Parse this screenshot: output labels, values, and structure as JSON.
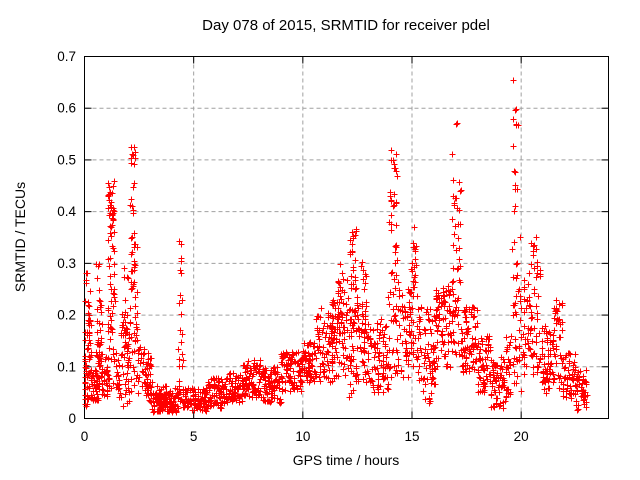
{
  "chart_data": {
    "type": "scatter",
    "title": "Day 078 of 2015, SRMTID for receiver pdel",
    "xlabel": "GPS time / hours",
    "ylabel": "SRMTID / TECUs",
    "xlim": [
      0,
      24
    ],
    "ylim": [
      0,
      0.7
    ],
    "x_ticks": [
      {
        "v": 0,
        "label": "0"
      },
      {
        "v": 5,
        "label": "5"
      },
      {
        "v": 10,
        "label": "10"
      },
      {
        "v": 15,
        "label": "15"
      },
      {
        "v": 20,
        "label": "20"
      }
    ],
    "y_ticks": [
      {
        "v": 0,
        "label": "0"
      },
      {
        "v": 0.1,
        "label": "0.1"
      },
      {
        "v": 0.2,
        "label": "0.2"
      },
      {
        "v": 0.3,
        "label": "0.3"
      },
      {
        "v": 0.4,
        "label": "0.4"
      },
      {
        "v": 0.5,
        "label": "0.5"
      },
      {
        "v": 0.6,
        "label": "0.6"
      },
      {
        "v": 0.7,
        "label": "0.7"
      }
    ],
    "grid": {
      "on": true,
      "color": "#a0a0a0",
      "dash": "4 3"
    },
    "border_color": "#000000",
    "marker": "plus",
    "marker_color": "#ff0000",
    "marker_size": 7,
    "seed": 20150378,
    "series": [
      {
        "name": "SRMTID",
        "bin_format": "[t_start_hours, t_end_hours, point_count, y_min_TECUs, y_max_TECUs]",
        "bins": [
          [
            0.0,
            0.3,
            55,
            0.02,
            0.19
          ],
          [
            0.02,
            0.28,
            12,
            0.19,
            0.33
          ],
          [
            0.3,
            0.55,
            30,
            0.03,
            0.1
          ],
          [
            0.5,
            0.8,
            45,
            0.03,
            0.22
          ],
          [
            0.52,
            0.75,
            8,
            0.22,
            0.3
          ],
          [
            0.8,
            1.05,
            25,
            0.04,
            0.12
          ],
          [
            1.0,
            1.45,
            28,
            0.05,
            0.2
          ],
          [
            1.05,
            1.4,
            22,
            0.2,
            0.35
          ],
          [
            1.05,
            1.35,
            32,
            0.35,
            0.46
          ],
          [
            1.45,
            1.65,
            15,
            0.04,
            0.12
          ],
          [
            1.65,
            2.05,
            50,
            0.02,
            0.2
          ],
          [
            1.7,
            2.0,
            8,
            0.2,
            0.3
          ],
          [
            2.05,
            2.45,
            30,
            0.05,
            0.25
          ],
          [
            2.1,
            2.4,
            25,
            0.25,
            0.42
          ],
          [
            2.12,
            2.35,
            12,
            0.42,
            0.53
          ],
          [
            2.45,
            2.75,
            18,
            0.04,
            0.15
          ],
          [
            2.75,
            3.1,
            40,
            0.03,
            0.13
          ],
          [
            3.1,
            4.3,
            130,
            0.012,
            0.05
          ],
          [
            3.3,
            4.25,
            10,
            0.05,
            0.07
          ],
          [
            4.3,
            4.5,
            22,
            0.03,
            0.28
          ],
          [
            4.32,
            4.45,
            6,
            0.28,
            0.35
          ],
          [
            4.5,
            5.6,
            95,
            0.015,
            0.06
          ],
          [
            5.6,
            6.6,
            90,
            0.02,
            0.08
          ],
          [
            6.6,
            7.2,
            60,
            0.03,
            0.09
          ],
          [
            7.2,
            8.1,
            80,
            0.04,
            0.115
          ],
          [
            8.1,
            9.0,
            80,
            0.03,
            0.1
          ],
          [
            9.0,
            10.0,
            90,
            0.05,
            0.13
          ],
          [
            10.0,
            10.6,
            60,
            0.07,
            0.15
          ],
          [
            10.6,
            11.5,
            85,
            0.07,
            0.2
          ],
          [
            10.8,
            11.5,
            8,
            0.2,
            0.23
          ],
          [
            11.5,
            12.1,
            55,
            0.08,
            0.25
          ],
          [
            11.6,
            12.1,
            8,
            0.25,
            0.31
          ],
          [
            12.1,
            12.5,
            45,
            0.04,
            0.25
          ],
          [
            12.15,
            12.45,
            22,
            0.25,
            0.37
          ],
          [
            12.5,
            13.1,
            55,
            0.07,
            0.24
          ],
          [
            12.55,
            13.0,
            8,
            0.24,
            0.31
          ],
          [
            13.1,
            13.9,
            70,
            0.05,
            0.2
          ],
          [
            13.9,
            14.45,
            40,
            0.08,
            0.3
          ],
          [
            13.95,
            14.4,
            22,
            0.3,
            0.46
          ],
          [
            14.0,
            14.35,
            9,
            0.46,
            0.52
          ],
          [
            14.45,
            14.95,
            45,
            0.08,
            0.25
          ],
          [
            14.95,
            15.25,
            30,
            0.1,
            0.32
          ],
          [
            15.0,
            15.2,
            7,
            0.32,
            0.37
          ],
          [
            15.25,
            16.1,
            75,
            0.06,
            0.22
          ],
          [
            15.4,
            15.9,
            8,
            0.03,
            0.06
          ],
          [
            16.1,
            16.75,
            70,
            0.1,
            0.26
          ],
          [
            16.75,
            17.3,
            45,
            0.12,
            0.3
          ],
          [
            16.8,
            17.25,
            22,
            0.3,
            0.47
          ],
          [
            16.85,
            17.1,
            3,
            0.5,
            0.59
          ],
          [
            17.3,
            18.0,
            65,
            0.09,
            0.22
          ],
          [
            18.0,
            18.6,
            55,
            0.05,
            0.16
          ],
          [
            18.6,
            19.3,
            60,
            0.02,
            0.12
          ],
          [
            19.3,
            19.55,
            25,
            0.04,
            0.16
          ],
          [
            19.6,
            20.15,
            40,
            0.04,
            0.25
          ],
          [
            19.6,
            19.95,
            12,
            0.25,
            0.45
          ],
          [
            19.6,
            19.85,
            10,
            0.45,
            0.6
          ],
          [
            19.62,
            19.72,
            1,
            0.64,
            0.655
          ],
          [
            20.1,
            20.45,
            35,
            0.1,
            0.3
          ],
          [
            20.45,
            20.9,
            40,
            0.08,
            0.36
          ],
          [
            20.9,
            21.4,
            50,
            0.05,
            0.18
          ],
          [
            21.4,
            21.9,
            45,
            0.05,
            0.23
          ],
          [
            21.9,
            22.5,
            50,
            0.04,
            0.13
          ],
          [
            22.5,
            23.1,
            40,
            0.016,
            0.1
          ]
        ]
      }
    ]
  }
}
